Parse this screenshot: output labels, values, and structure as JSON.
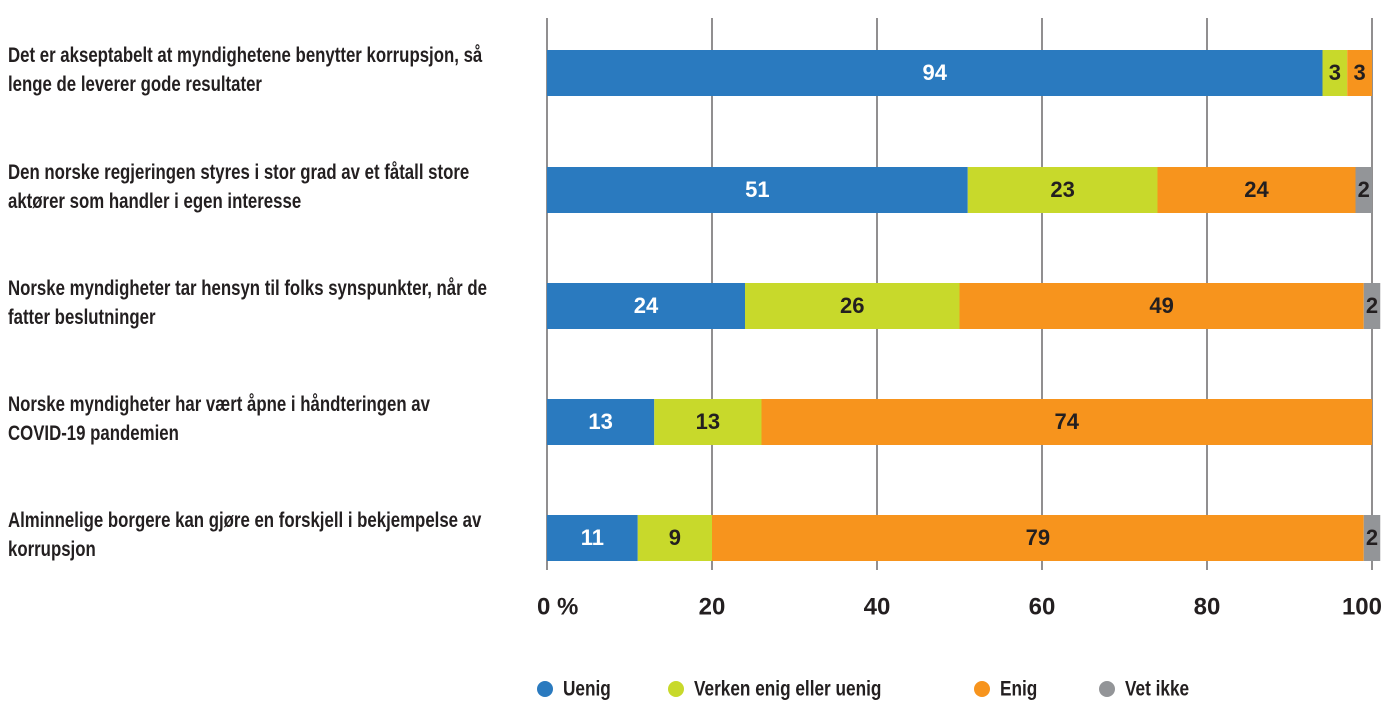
{
  "chart_data": {
    "type": "stacked-bar-horizontal",
    "categories": [
      "Det er akseptabelt at myndighetene benytter korrupsjon, så lenge de leverer gode resultater",
      "Den norske regjeringen styres i stor grad av et fåtall store aktører som handler i egen interesse",
      "Norske myndigheter tar hensyn til folks synspunkter, når de fatter beslutninger",
      "Norske myndigheter har vært åpne i håndteringen av COVID-19 pandemien",
      "Alminnelige borgere kan gjøre en forskjell i bekjempelse av korrupsjon"
    ],
    "series": [
      {
        "name": "Uenig",
        "color": "#2a7abf",
        "values": [
          94,
          51,
          24,
          13,
          11
        ]
      },
      {
        "name": "Verken enig eller uenig",
        "color": "#c8d92b",
        "values": [
          3,
          23,
          26,
          13,
          9
        ]
      },
      {
        "name": "Enig",
        "color": "#f7941d",
        "values": [
          3,
          24,
          49,
          74,
          79
        ]
      },
      {
        "name": "Vet ikke",
        "color": "#939598",
        "values": [
          null,
          2,
          2,
          null,
          2
        ]
      }
    ],
    "xlim": [
      0,
      100
    ],
    "xticks": [
      {
        "value": 0,
        "label": "0 %"
      },
      20,
      40,
      60,
      80,
      100
    ],
    "grid": true
  }
}
